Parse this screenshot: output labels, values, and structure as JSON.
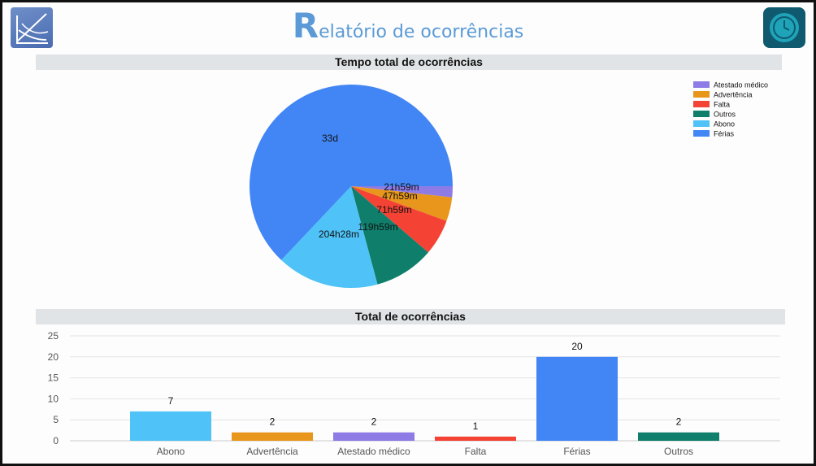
{
  "header": {
    "title_first": "R",
    "title_rest": "elatório de ocorrências"
  },
  "icons": {
    "left_logo": "chart-logo-icon",
    "right_logo": "clock-refresh-icon"
  },
  "chart_data": [
    {
      "type": "pie",
      "title": "Tempo total de ocorrências",
      "legend": [
        "Atestado médico",
        "Advertência",
        "Falta",
        "Outros",
        "Abono",
        "Férias"
      ],
      "legend_colors": [
        "#8e7be6",
        "#e8971c",
        "#f44335",
        "#0f7f6b",
        "#4fc3f7",
        "#4286f5"
      ],
      "legend_position": "top-right",
      "slices": [
        {
          "name": "Atestado médico",
          "label": "21h59m",
          "value": 21.98,
          "color": "#8e7be6"
        },
        {
          "name": "Advertência",
          "label": "47h59m",
          "value": 47.98,
          "color": "#e8971c"
        },
        {
          "name": "Falta",
          "label": "71h59m",
          "value": 71.98,
          "color": "#f44335"
        },
        {
          "name": "Outros",
          "label": "119h59m",
          "value": 119.98,
          "color": "#0f7f6b"
        },
        {
          "name": "Abono",
          "label": "204h28m",
          "value": 204.47,
          "color": "#4fc3f7"
        },
        {
          "name": "Férias",
          "label": "33d",
          "value": 792,
          "color": "#4286f5"
        }
      ]
    },
    {
      "type": "bar",
      "title": "Total de ocorrências",
      "categories": [
        "Abono",
        "Advertência",
        "Atestado médico",
        "Falta",
        "Férias",
        "Outros"
      ],
      "values": [
        7,
        2,
        2,
        1,
        20,
        2
      ],
      "colors": [
        "#4fc3f7",
        "#e8971c",
        "#8e7be6",
        "#f44335",
        "#4286f5",
        "#0f7f6b"
      ],
      "ylim": [
        0,
        25
      ],
      "yticks": [
        0,
        5,
        10,
        15,
        20,
        25
      ],
      "grid": true
    }
  ]
}
